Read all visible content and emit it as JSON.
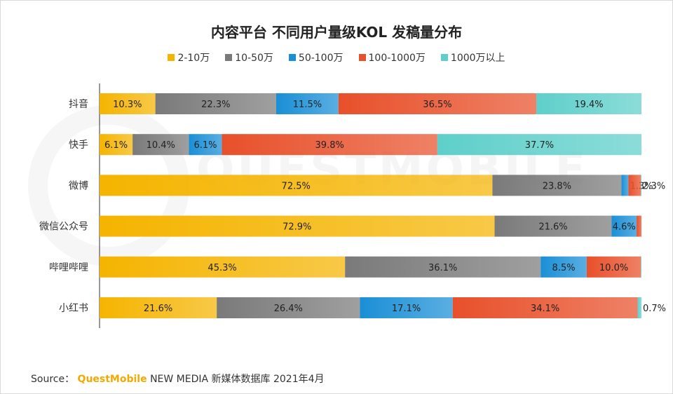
{
  "chart_data": {
    "type": "bar",
    "orientation": "horizontal",
    "stacked": "percent",
    "title": "内容平台 不同用户量级KOL 发稿量分布",
    "categories": [
      "抖音",
      "快手",
      "微博",
      "微信公众号",
      "哔哩哔哩",
      "小红书"
    ],
    "series": [
      {
        "name": "2-10万",
        "values": [
          10.3,
          6.1,
          72.5,
          72.9,
          45.3,
          21.6
        ],
        "color": "#f5b400",
        "labels": [
          "10.3%",
          "6.1%",
          "72.5%",
          "72.9%",
          "45.3%",
          "21.6%"
        ]
      },
      {
        "name": "10-50万",
        "values": [
          22.3,
          10.4,
          23.8,
          21.6,
          36.1,
          26.4
        ],
        "color": "#7a7a7a",
        "labels": [
          "22.3%",
          "10.4%",
          "23.8%",
          "21.6%",
          "36.1%",
          "26.4%"
        ]
      },
      {
        "name": "50-100万",
        "values": [
          11.5,
          6.1,
          1.3,
          4.6,
          8.5,
          17.1
        ],
        "color": "#1a8fd6",
        "labels": [
          "11.5%",
          "6.1%",
          "1.3%",
          "4.6%",
          "8.5%",
          "17.1%"
        ]
      },
      {
        "name": "100-1000万",
        "values": [
          36.5,
          39.8,
          2.3,
          0.9,
          10.0,
          34.1
        ],
        "color": "#e8502a",
        "labels": [
          "36.5%",
          "39.8%",
          "2.3%",
          "",
          "10.0%",
          "34.1%"
        ]
      },
      {
        "name": "1000万以上",
        "values": [
          19.4,
          37.7,
          0.1,
          0.0,
          0.1,
          0.7
        ],
        "color": "#5fcfca",
        "labels": [
          "19.4%",
          "37.7%",
          "",
          "",
          "",
          "0.7%"
        ]
      }
    ],
    "xlim": [
      0,
      100
    ],
    "legend_position": "top-center",
    "grid": false
  },
  "watermark": "QUESTMOBILE",
  "source": {
    "prefix": "Source：",
    "brand": "QuestMobile",
    "text": "NEW MEDIA 新媒体数据库 2021年4月"
  }
}
